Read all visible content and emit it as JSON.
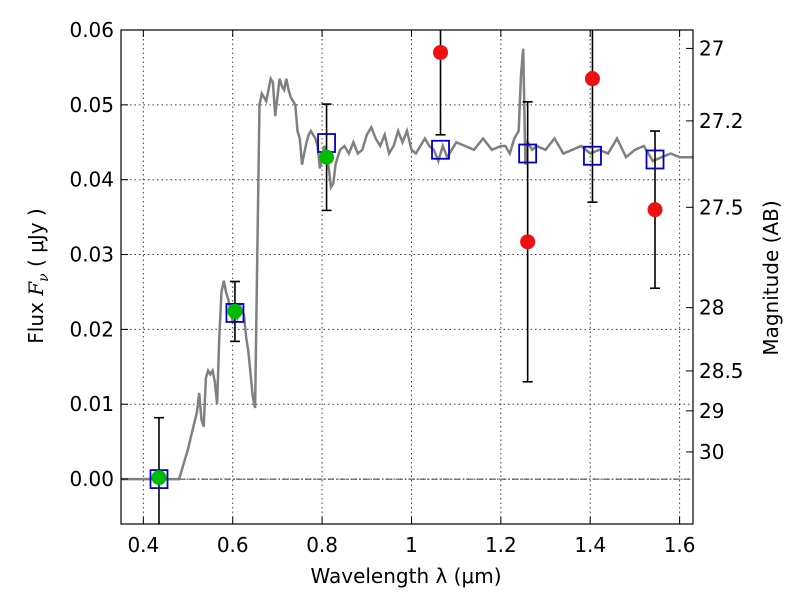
{
  "chart_data": {
    "type": "scatter",
    "xlabel": "Wavelength  λ (μm)",
    "ylabel": "Flux  F_ν  ( μJy )",
    "ylabel_parts": {
      "pre": "Flux  ",
      "sym": "F",
      "sub": "ν",
      "post": "  ( μJy )"
    },
    "y2label": "Magnitude (AB)",
    "xlim": [
      0.35,
      1.63
    ],
    "ylim": [
      -0.006,
      0.06
    ],
    "grid": true,
    "x_ticks": [
      {
        "value": 0.4,
        "label": "0.4"
      },
      {
        "value": 0.6,
        "label": "0.6"
      },
      {
        "value": 0.8,
        "label": "0.8"
      },
      {
        "value": 1.0,
        "label": "1"
      },
      {
        "value": 1.2,
        "label": "1.2"
      },
      {
        "value": 1.4,
        "label": "1.4"
      },
      {
        "value": 1.6,
        "label": "1.6"
      }
    ],
    "y_ticks": [
      {
        "value": 0.0,
        "label": "0.00"
      },
      {
        "value": 0.01,
        "label": "0.01"
      },
      {
        "value": 0.02,
        "label": "0.02"
      },
      {
        "value": 0.03,
        "label": "0.03"
      },
      {
        "value": 0.04,
        "label": "0.04"
      },
      {
        "value": 0.05,
        "label": "0.05"
      },
      {
        "value": 0.06,
        "label": "0.06"
      }
    ],
    "y2_ticks": [
      {
        "flux": 0.05754,
        "label": "27"
      },
      {
        "flux": 0.04786,
        "label": "27.2"
      },
      {
        "flux": 0.03631,
        "label": "27.5"
      },
      {
        "flux": 0.02291,
        "label": "28"
      },
      {
        "flux": 0.01445,
        "label": "28.5"
      },
      {
        "flux": 0.00912,
        "label": "29"
      },
      {
        "flux": 0.00363,
        "label": "30"
      }
    ],
    "colors": {
      "model": "#808080",
      "model_photometry": "#0000cc",
      "detections": "#00bb00",
      "observed": "#ee1111",
      "errorbar": "#000000",
      "zero_line": "#000000"
    },
    "model_spectrum": {
      "x": [
        0.35,
        0.45,
        0.48,
        0.5,
        0.52,
        0.525,
        0.53,
        0.535,
        0.54,
        0.545,
        0.55,
        0.555,
        0.56,
        0.565,
        0.57,
        0.575,
        0.58,
        0.585,
        0.59,
        0.595,
        0.6,
        0.605,
        0.61,
        0.615,
        0.62,
        0.625,
        0.63,
        0.635,
        0.64,
        0.645,
        0.65,
        0.655,
        0.66,
        0.665,
        0.67,
        0.675,
        0.68,
        0.685,
        0.69,
        0.695,
        0.7,
        0.705,
        0.71,
        0.715,
        0.72,
        0.725,
        0.73,
        0.735,
        0.74,
        0.745,
        0.75,
        0.755,
        0.76,
        0.765,
        0.77,
        0.775,
        0.78,
        0.785,
        0.79,
        0.795,
        0.8,
        0.805,
        0.81,
        0.815,
        0.82,
        0.825,
        0.83,
        0.835,
        0.84,
        0.85,
        0.86,
        0.87,
        0.88,
        0.89,
        0.9,
        0.91,
        0.92,
        0.93,
        0.94,
        0.95,
        0.96,
        0.97,
        0.98,
        0.99,
        1.0,
        1.01,
        1.02,
        1.03,
        1.04,
        1.05,
        1.06,
        1.07,
        1.08,
        1.09,
        1.1,
        1.12,
        1.14,
        1.16,
        1.18,
        1.2,
        1.21,
        1.22,
        1.23,
        1.24,
        1.245,
        1.25,
        1.255,
        1.26,
        1.27,
        1.28,
        1.3,
        1.32,
        1.34,
        1.36,
        1.38,
        1.4,
        1.42,
        1.44,
        1.46,
        1.48,
        1.5,
        1.52,
        1.54,
        1.56,
        1.58,
        1.6,
        1.63
      ],
      "y": [
        0.0,
        0.0,
        0.0,
        0.004,
        0.009,
        0.0115,
        0.008,
        0.007,
        0.0135,
        0.0145,
        0.014,
        0.0145,
        0.013,
        0.01,
        0.019,
        0.025,
        0.0265,
        0.025,
        0.024,
        0.0225,
        0.021,
        0.022,
        0.0215,
        0.0235,
        0.0225,
        0.022,
        0.019,
        0.017,
        0.014,
        0.011,
        0.0095,
        0.03,
        0.05,
        0.0515,
        0.051,
        0.0505,
        0.052,
        0.0535,
        0.053,
        0.0485,
        0.051,
        0.0535,
        0.0525,
        0.052,
        0.0535,
        0.052,
        0.051,
        0.0505,
        0.05,
        0.0465,
        0.0455,
        0.042,
        0.0435,
        0.045,
        0.046,
        0.0465,
        0.046,
        0.0455,
        0.0445,
        0.0415,
        0.043,
        0.0445,
        0.0435,
        0.0415,
        0.039,
        0.0395,
        0.042,
        0.043,
        0.044,
        0.0445,
        0.0435,
        0.045,
        0.0435,
        0.044,
        0.046,
        0.047,
        0.0455,
        0.0445,
        0.046,
        0.0435,
        0.0445,
        0.0465,
        0.045,
        0.0465,
        0.044,
        0.0435,
        0.0445,
        0.0455,
        0.0445,
        0.044,
        0.0425,
        0.0445,
        0.043,
        0.044,
        0.045,
        0.0445,
        0.044,
        0.0455,
        0.044,
        0.0445,
        0.0445,
        0.0435,
        0.0455,
        0.0465,
        0.054,
        0.0575,
        0.042,
        0.045,
        0.044,
        0.0445,
        0.044,
        0.0455,
        0.0435,
        0.044,
        0.0445,
        0.0435,
        0.044,
        0.0435,
        0.0455,
        0.043,
        0.044,
        0.0445,
        0.0425,
        0.043,
        0.0435,
        0.043,
        0.043
      ]
    },
    "model_photometry": {
      "x": [
        0.435,
        0.605,
        0.81,
        1.065,
        1.26,
        1.405,
        1.545
      ],
      "y": [
        0.0,
        0.0222,
        0.0449,
        0.044,
        0.0435,
        0.0432,
        0.0427
      ]
    },
    "detections": {
      "x": [
        0.435,
        0.605,
        0.81
      ],
      "y": [
        0.0002,
        0.0224,
        0.043
      ],
      "yerr": [
        0.008,
        0.004,
        0.0071
      ]
    },
    "observed": {
      "x": [
        1.065,
        1.26,
        1.405,
        1.545
      ],
      "y": [
        0.057,
        0.0317,
        0.0535,
        0.036
      ],
      "yerr": [
        0.011,
        0.0187,
        0.0165,
        0.0105
      ]
    }
  }
}
